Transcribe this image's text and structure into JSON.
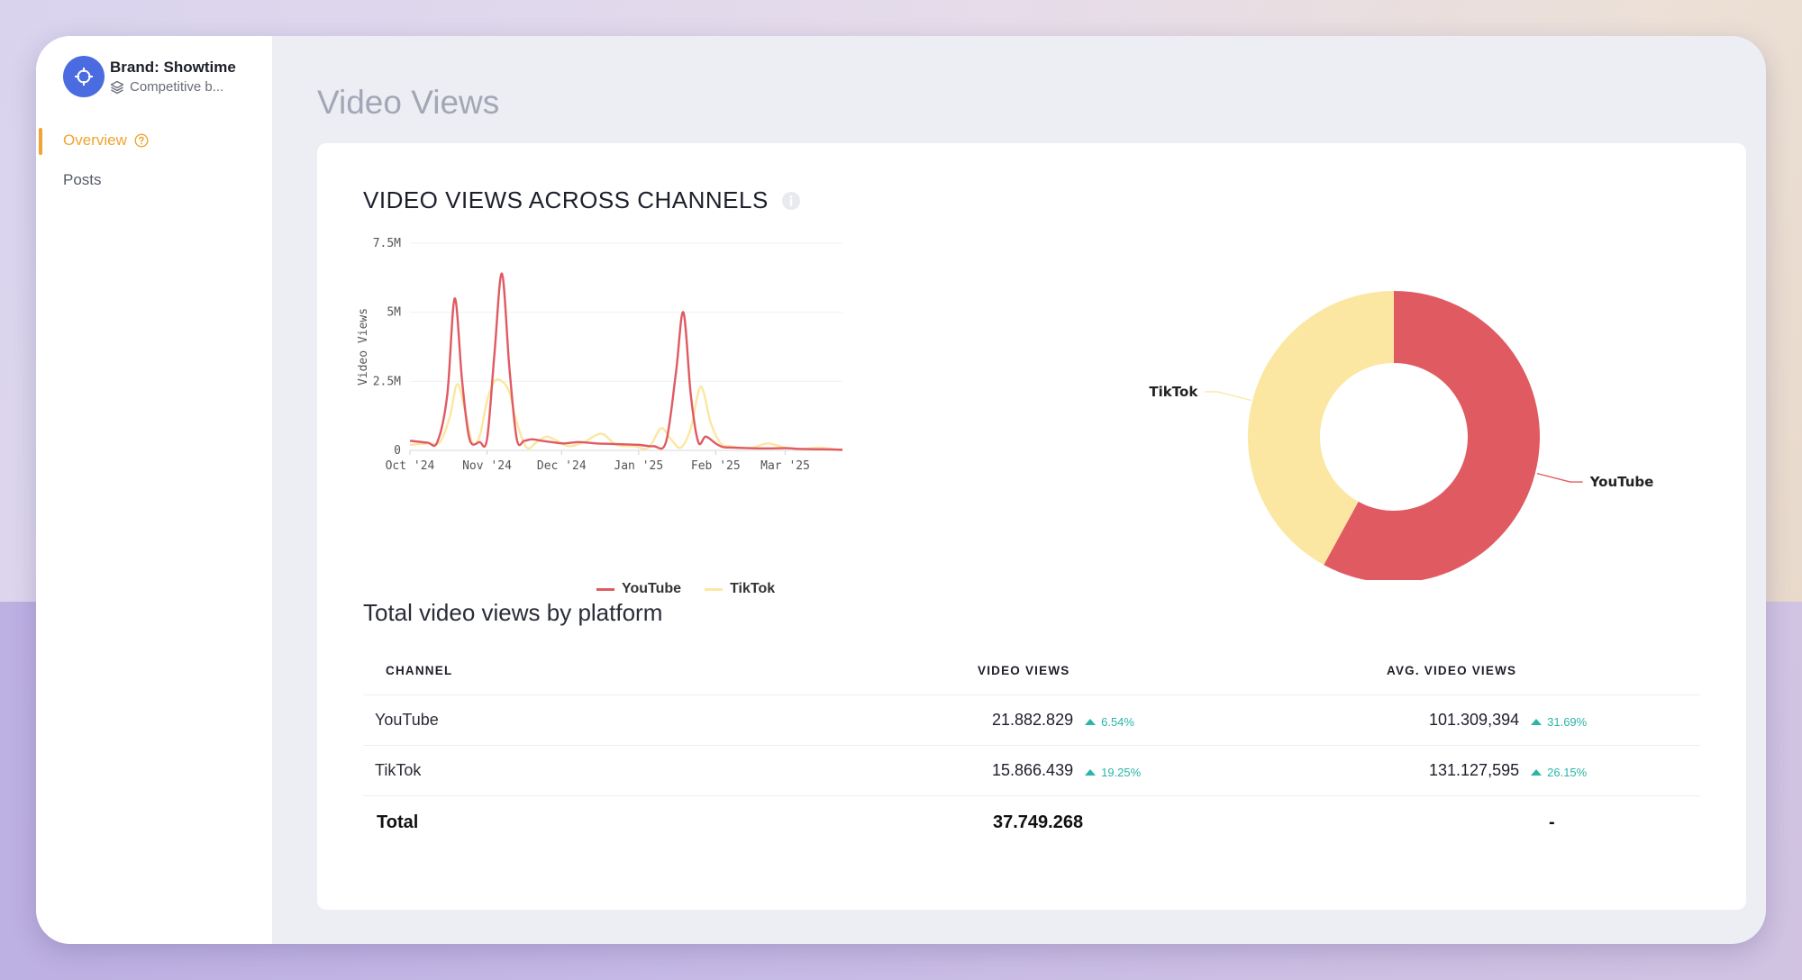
{
  "sidebar": {
    "brand_name": "Brand: Showtime",
    "brand_sub": "Competitive b...",
    "nav": [
      {
        "label": "Overview",
        "active": true,
        "icon": "help-circle-icon"
      },
      {
        "label": "Posts",
        "active": false
      }
    ]
  },
  "page": {
    "title": "Video Views"
  },
  "card": {
    "title": "VIDEO VIEWS ACROSS CHANNELS",
    "info_icon": "info-icon"
  },
  "chart_data": [
    {
      "type": "line",
      "title": "",
      "xlabel": "",
      "ylabel": "Video Views",
      "ylim": [
        0,
        7500000
      ],
      "yticks": [
        0,
        2500000,
        5000000,
        7500000
      ],
      "ytick_labels": [
        "0",
        "2.5M",
        "5M",
        "7.5M"
      ],
      "xticks": [
        "2024-10-01",
        "2024-11-01",
        "2024-12-01",
        "2025-01-01",
        "2025-02-01",
        "2025-03-01"
      ],
      "xtick_labels": [
        "Oct '24",
        "Nov '24",
        "Dec '24",
        "Jan '25",
        "Feb '25",
        "Mar '25"
      ],
      "xlim": [
        "2024-10-01",
        "2025-03-24"
      ],
      "grid": true,
      "legend": "bottom",
      "series": [
        {
          "name": "YouTube",
          "color": "#e05a62",
          "x": [
            "2024-10-01",
            "2024-10-08",
            "2024-10-12",
            "2024-10-16",
            "2024-10-19",
            "2024-10-22",
            "2024-10-25",
            "2024-10-29",
            "2024-11-01",
            "2024-11-04",
            "2024-11-07",
            "2024-11-10",
            "2024-11-13",
            "2024-11-16",
            "2024-11-19",
            "2024-11-23",
            "2024-11-27",
            "2024-12-02",
            "2024-12-08",
            "2024-12-15",
            "2024-12-22",
            "2025-01-01",
            "2025-01-07",
            "2025-01-12",
            "2025-01-16",
            "2025-01-19",
            "2025-01-22",
            "2025-01-25",
            "2025-01-28",
            "2025-02-01",
            "2025-02-04",
            "2025-02-08",
            "2025-02-14",
            "2025-02-22",
            "2025-03-01",
            "2025-03-08",
            "2025-03-16",
            "2025-03-24"
          ],
          "values": [
            350000,
            280000,
            300000,
            2000000,
            5500000,
            2500000,
            400000,
            300000,
            400000,
            3500000,
            6400000,
            3000000,
            400000,
            350000,
            400000,
            350000,
            300000,
            250000,
            300000,
            250000,
            230000,
            200000,
            150000,
            300000,
            2800000,
            5000000,
            2000000,
            300000,
            500000,
            250000,
            120000,
            100000,
            80000,
            70000,
            80000,
            50000,
            40000,
            20000
          ]
        },
        {
          "name": "TikTok",
          "color": "#fbe7a1",
          "x": [
            "2024-10-01",
            "2024-10-08",
            "2024-10-13",
            "2024-10-17",
            "2024-10-20",
            "2024-10-23",
            "2024-10-26",
            "2024-10-29",
            "2024-11-01",
            "2024-11-04",
            "2024-11-07",
            "2024-11-10",
            "2024-11-13",
            "2024-11-17",
            "2024-11-21",
            "2024-11-25",
            "2024-11-29",
            "2024-12-04",
            "2024-12-10",
            "2024-12-17",
            "2024-12-23",
            "2024-12-30",
            "2025-01-05",
            "2025-01-10",
            "2025-01-14",
            "2025-01-18",
            "2025-01-22",
            "2025-01-26",
            "2025-01-30",
            "2025-02-03",
            "2025-02-07",
            "2025-02-11",
            "2025-02-16",
            "2025-02-22",
            "2025-03-01",
            "2025-03-08",
            "2025-03-15",
            "2025-03-24"
          ],
          "values": [
            200000,
            250000,
            300000,
            1200000,
            2400000,
            1500000,
            300000,
            500000,
            1800000,
            2500000,
            2500000,
            2100000,
            1000000,
            100000,
            300000,
            500000,
            350000,
            150000,
            300000,
            600000,
            200000,
            150000,
            100000,
            800000,
            400000,
            100000,
            800000,
            2300000,
            1000000,
            250000,
            150000,
            100000,
            100000,
            250000,
            100000,
            50000,
            100000,
            0
          ]
        }
      ]
    },
    {
      "type": "pie",
      "title": "",
      "donut": true,
      "categories": [
        "YouTube",
        "TikTok"
      ],
      "values": [
        21882829,
        15866439
      ],
      "colors": [
        "#e05a62",
        "#fbe7a1"
      ]
    }
  ],
  "table": {
    "title": "Total video views by platform",
    "headers": [
      "CHANNEL",
      "VIDEO VIEWS",
      "AVG. VIDEO VIEWS"
    ],
    "rows": [
      {
        "channel": "YouTube",
        "views": "21.882.829",
        "views_delta": "6.54%",
        "avg": "101.309,394",
        "avg_delta": "31.69%"
      },
      {
        "channel": "TikTok",
        "views": "15.866.439",
        "views_delta": "19.25%",
        "avg": "131.127,595",
        "avg_delta": "26.15%"
      }
    ],
    "total": {
      "label": "Total",
      "views": "37.749.268",
      "avg": "-"
    }
  }
}
